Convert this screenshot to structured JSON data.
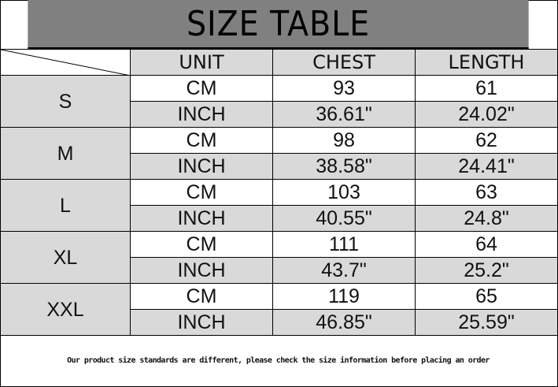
{
  "title": "SIZE TABLE",
  "headers": [
    "UNIT",
    "CHEST",
    "LENGTH"
  ],
  "rows": [
    {
      "size": "S",
      "cm": {
        "unit": "CM",
        "chest": "93",
        "length": "61"
      },
      "inch": {
        "unit": "INCH",
        "chest": "36.61\"",
        "length": "24.02\""
      }
    },
    {
      "size": "M",
      "cm": {
        "unit": "CM",
        "chest": "98",
        "length": "62"
      },
      "inch": {
        "unit": "INCH",
        "chest": "38.58\"",
        "length": "24.41\""
      }
    },
    {
      "size": "L",
      "cm": {
        "unit": "CM",
        "chest": "103",
        "length": "63"
      },
      "inch": {
        "unit": "INCH",
        "chest": "40.55\"",
        "length": "24.8\""
      }
    },
    {
      "size": "XL",
      "cm": {
        "unit": "CM",
        "chest": "111",
        "length": "64"
      },
      "inch": {
        "unit": "INCH",
        "chest": "43.7\"",
        "length": "25.2\""
      }
    },
    {
      "size": "XXL",
      "cm": {
        "unit": "CM",
        "chest": "119",
        "length": "65"
      },
      "inch": {
        "unit": "INCH",
        "chest": "46.85\"",
        "length": "25.59\""
      }
    }
  ],
  "footer": "Our product size standards are different, please check the size information before placing an order",
  "colors": {
    "title_bg": "#808080",
    "cell_gray": "#d9d9d9",
    "cell_white": "#ffffff"
  }
}
